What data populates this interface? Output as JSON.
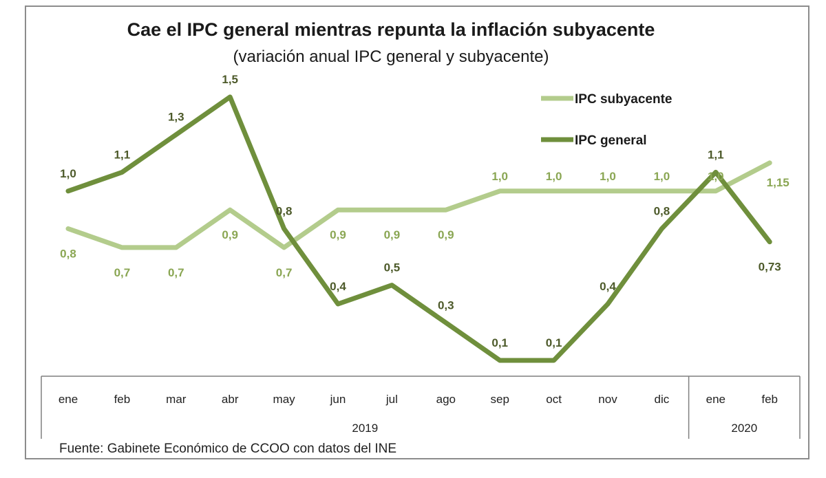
{
  "chart_data": {
    "type": "line",
    "title": "Cae el IPC general mientras repunta la inflación subyacente",
    "subtitle": "(variación anual IPC general y subyacente)",
    "categories": [
      "ene",
      "feb",
      "mar",
      "abr",
      "may",
      "jun",
      "jul",
      "ago",
      "sep",
      "oct",
      "nov",
      "dic",
      "ene",
      "feb"
    ],
    "year_groups": [
      {
        "label": "2019",
        "count": 12
      },
      {
        "label": "2020",
        "count": 2
      }
    ],
    "series": [
      {
        "name": "IPC general",
        "color": "#6f8f3c",
        "values": [
          1.0,
          1.1,
          1.3,
          1.5,
          0.8,
          0.4,
          0.5,
          0.3,
          0.1,
          0.1,
          0.4,
          0.8,
          1.1,
          0.73
        ],
        "labels": [
          "1,0",
          "1,1",
          "1,3",
          "1,5",
          "0,8",
          "0,4",
          "0,5",
          "0,3",
          "0,1",
          "0,1",
          "0,4",
          "0,8",
          "1,1",
          "0,73"
        ]
      },
      {
        "name": "IPC subyacente",
        "color": "#b3cc8c",
        "values": [
          0.8,
          0.7,
          0.7,
          0.9,
          0.7,
          0.9,
          0.9,
          0.9,
          1.0,
          1.0,
          1.0,
          1.0,
          1.0,
          1.15
        ],
        "labels": [
          "0,8",
          "0,7",
          "0,7",
          "0,9",
          "0,7",
          "0,9",
          "0,9",
          "0,9",
          "1,0",
          "1,0",
          "1,0",
          "1,0",
          "1,0",
          "1,15"
        ]
      }
    ],
    "legend_position": "top-right",
    "grid": false,
    "source": "Fuente: Gabinete Económico de CCOO con datos del INE"
  }
}
